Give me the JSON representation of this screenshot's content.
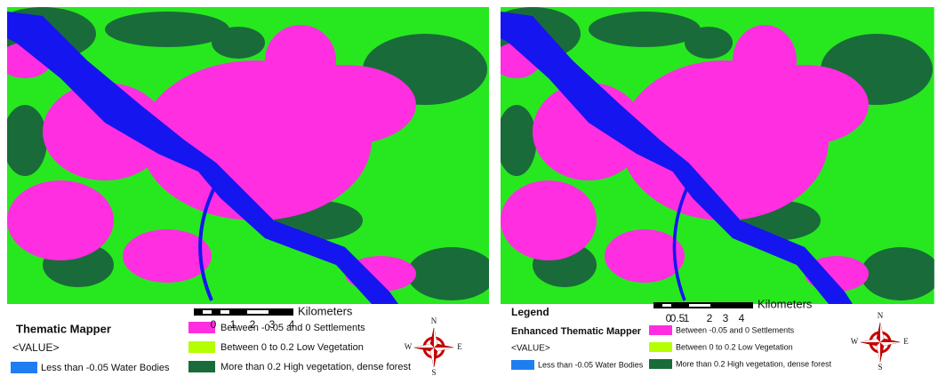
{
  "panels": [
    {
      "legend_title": "Thematic Mapper",
      "value_label": "<VALUE>",
      "scale_unit": "Kilometers",
      "scale_labels": [
        "0",
        "1",
        "2",
        "3",
        "4"
      ],
      "classes": [
        "Less than -0.05 Water Bodies",
        "Between -0.05 and 0 Settlements",
        "Between 0 to 0.2 Low Vegetation",
        "More than 0.2 High vegetation, dense forest"
      ],
      "compass": [
        "N",
        "E",
        "S",
        "W"
      ]
    },
    {
      "heading": "Legend",
      "legend_title": "Enhanced Thematic Mapper",
      "value_label": "<VALUE>",
      "scale_unit": "Kilometers",
      "scale_labels": [
        "0",
        "0.5",
        "1",
        "2",
        "3",
        "4"
      ],
      "classes": [
        "Less than -0.05 Water Bodies",
        "Between -0.05 and 0 Settlements",
        "Between 0 to 0.2 Low Vegetation",
        "More than 0.2 High vegetation, dense forest"
      ],
      "compass": [
        "N",
        "E",
        "S",
        "W"
      ]
    }
  ]
}
